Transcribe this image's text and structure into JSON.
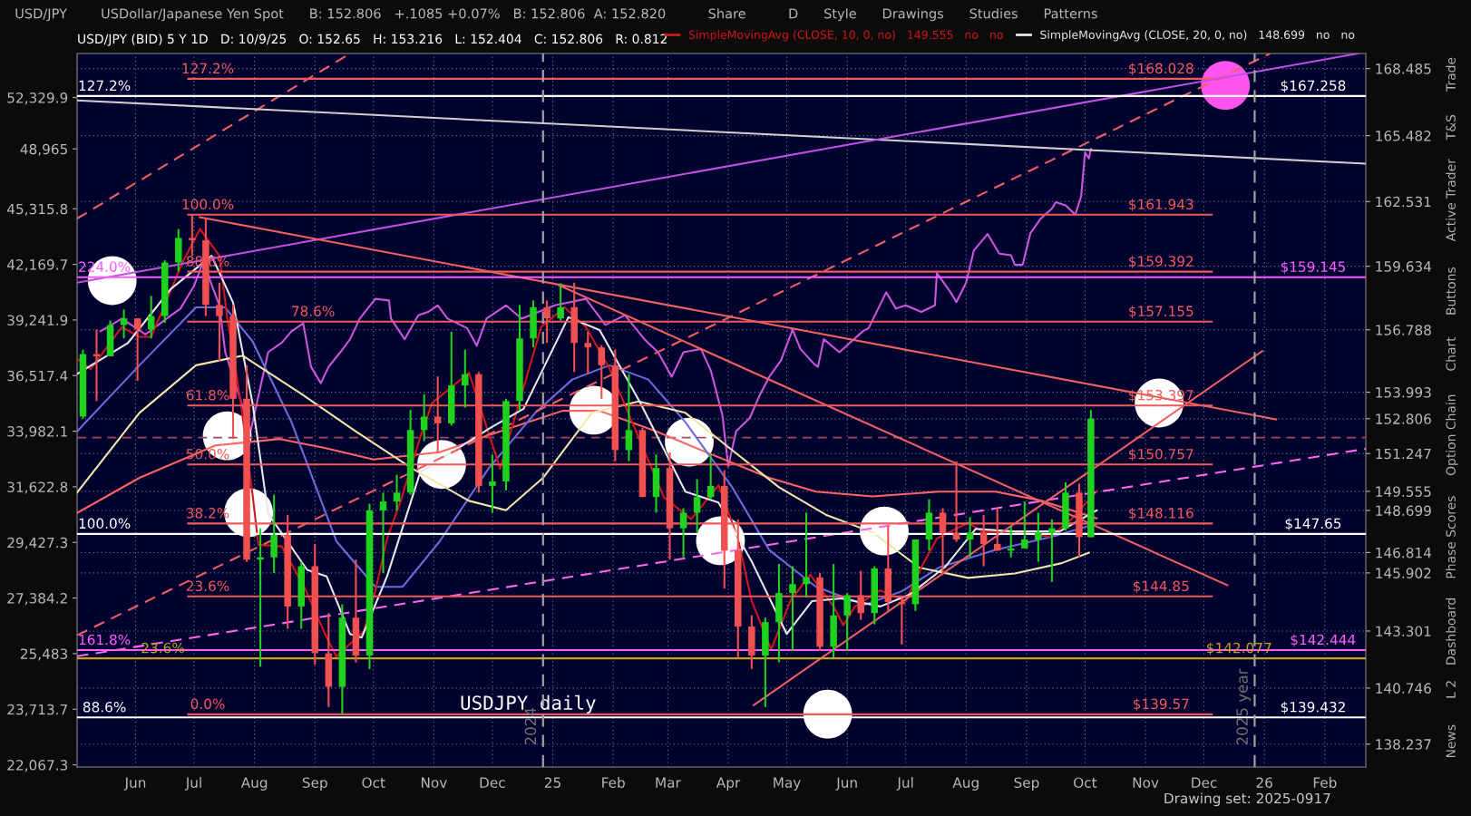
{
  "chart_data": {
    "type": "candlestick",
    "title": "USD/JPY (BID) 5 Y 1D   D: 10/9/25   O: 152.65   H: 153.216   L: 152.404   C: 152.806   R: 0.812",
    "subtitle": "USD/JPY        USDollar/Japanese Yen Spot      B: 152.806   +.1085 +0.07%   B: 152.806  A: 152.820          Share          D      Style      Drawings      Studies      Patterns",
    "xlim": [
      "2024-05-07",
      "2026-02-27"
    ],
    "xticks": [
      {
        "value": "2024-06-06",
        "label": "Jun"
      },
      {
        "value": "2024-07-06",
        "label": "Jul"
      },
      {
        "value": "2024-08-06",
        "label": "Aug"
      },
      {
        "value": "2024-09-06",
        "label": "Sep"
      },
      {
        "value": "2024-10-06",
        "label": "Oct"
      },
      {
        "value": "2024-11-06",
        "label": "Nov"
      },
      {
        "value": "2024-12-06",
        "label": "Dec"
      },
      {
        "value": "2025-01-06",
        "label": "25"
      },
      {
        "value": "2025-02-06",
        "label": "Feb"
      },
      {
        "value": "2025-03-06",
        "label": "Mar"
      },
      {
        "value": "2025-04-06",
        "label": "Apr"
      },
      {
        "value": "2025-05-06",
        "label": "May"
      },
      {
        "value": "2025-06-06",
        "label": "Jun"
      },
      {
        "value": "2025-07-06",
        "label": "Jul"
      },
      {
        "value": "2025-08-06",
        "label": "Aug"
      },
      {
        "value": "2025-09-06",
        "label": "Sep"
      },
      {
        "value": "2025-10-06",
        "label": "Oct"
      },
      {
        "value": "2025-11-06",
        "label": "Nov"
      },
      {
        "value": "2025-12-06",
        "label": "Dec"
      },
      {
        "value": "2026-01-06",
        "label": "26"
      },
      {
        "value": "2026-02-06",
        "label": "Feb"
      }
    ],
    "ylim": [
      137.21,
      169.16
    ],
    "yticks": [
      138.237,
      140.746,
      143.301,
      145.902,
      146.814,
      148.699,
      149.555,
      151.247,
      152.806,
      153.993,
      156.788,
      159.634,
      162.531,
      165.482,
      168.485
    ],
    "y2lim": [
      22005,
      55400
    ],
    "y2ticks": [
      {
        "value": 22067.3,
        "label": "22,067.3"
      },
      {
        "value": 23713.7,
        "label": "23,713.7"
      },
      {
        "value": 25483,
        "label": "25,483"
      },
      {
        "value": 27384.2,
        "label": "27,384.2"
      },
      {
        "value": 29427.3,
        "label": "29,427.3"
      },
      {
        "value": 31622.8,
        "label": "31,622.8"
      },
      {
        "value": 33982.1,
        "label": "33,982.1"
      },
      {
        "value": 36517.4,
        "label": "36,517.4"
      },
      {
        "value": 39241.9,
        "label": "39,241.9"
      },
      {
        "value": 42169.7,
        "label": "42,169.7"
      },
      {
        "value": 45315.8,
        "label": "45,315.8"
      },
      {
        "value": 48965,
        "label": "48,965"
      },
      {
        "value": 52329.9,
        "label": "52,329.9"
      }
    ],
    "log": "y2",
    "grid": true,
    "legend": "top",
    "marker": "none",
    "series": [
      {
        "x": [
          "2024-05-10",
          "2024-05-17",
          "2024-05-24",
          "2024-05-31",
          "2024-06-07",
          "2024-06-14",
          "2024-06-21",
          "2024-06-28",
          "2024-07-05",
          "2024-07-12",
          "2024-07-19",
          "2024-07-26",
          "2024-08-02",
          "2024-08-09",
          "2024-08-16",
          "2024-08-23",
          "2024-08-30",
          "2024-09-06",
          "2024-09-13",
          "2024-09-20",
          "2024-09-27",
          "2024-10-04",
          "2024-10-11",
          "2024-10-18",
          "2024-10-25",
          "2024-11-01",
          "2024-11-08",
          "2024-11-15",
          "2024-11-22",
          "2024-11-29",
          "2024-12-06",
          "2024-12-13",
          "2024-12-20",
          "2024-12-27",
          "2025-01-03",
          "2025-01-10",
          "2025-01-17",
          "2025-01-24",
          "2025-01-31",
          "2025-02-07",
          "2025-02-14",
          "2025-02-21",
          "2025-02-28",
          "2025-03-07",
          "2025-03-14",
          "2025-03-21",
          "2025-03-28",
          "2025-04-04",
          "2025-04-11",
          "2025-04-18",
          "2025-04-25",
          "2025-05-02",
          "2025-05-09",
          "2025-05-16",
          "2025-05-23",
          "2025-05-30",
          "2025-06-06",
          "2025-06-13",
          "2025-06-20",
          "2025-06-27",
          "2025-07-04",
          "2025-07-11",
          "2025-07-18",
          "2025-07-25",
          "2025-08-01",
          "2025-08-08",
          "2025-08-15",
          "2025-08-22",
          "2025-08-29",
          "2025-09-05",
          "2025-09-12",
          "2025-09-19",
          "2025-09-26",
          "2025-10-03",
          "2025-10-09"
        ],
        "ohlc": [
          [
            152.9,
            155.9,
            152.8,
            155.7
          ],
          [
            155.7,
            156.8,
            153.6,
            155.6
          ],
          [
            155.6,
            157.2,
            155.6,
            157.0
          ],
          [
            157.0,
            157.7,
            156.4,
            157.3
          ],
          [
            157.3,
            157.3,
            154.5,
            156.8
          ],
          [
            156.8,
            158.3,
            156.4,
            157.4
          ],
          [
            157.4,
            159.9,
            157.1,
            159.8
          ],
          [
            159.8,
            161.3,
            159.4,
            160.9
          ],
          [
            160.9,
            161.95,
            160.1,
            160.8
          ],
          [
            160.8,
            161.8,
            157.4,
            157.9
          ],
          [
            157.9,
            158.9,
            155.4,
            157.4
          ],
          [
            157.4,
            157.9,
            151.9,
            153.7
          ],
          [
            153.7,
            155.2,
            146.4,
            146.5
          ],
          [
            146.5,
            147.9,
            141.7,
            146.6
          ],
          [
            146.6,
            149.4,
            145.9,
            147.6
          ],
          [
            147.6,
            148.5,
            143.4,
            144.4
          ],
          [
            144.4,
            146.4,
            143.4,
            146.2
          ],
          [
            146.2,
            147.2,
            141.8,
            142.3
          ],
          [
            142.3,
            144.1,
            139.9,
            140.8
          ],
          [
            140.8,
            144.5,
            139.58,
            143.9
          ],
          [
            143.9,
            146.5,
            141.9,
            142.2
          ],
          [
            142.2,
            149.0,
            141.6,
            148.7
          ],
          [
            148.7,
            149.5,
            145.9,
            149.1
          ],
          [
            149.1,
            150.3,
            148.7,
            149.5
          ],
          [
            149.5,
            153.2,
            149.4,
            152.3
          ],
          [
            152.3,
            153.9,
            151.8,
            152.9
          ],
          [
            152.9,
            154.7,
            151.3,
            152.6
          ],
          [
            152.6,
            156.7,
            152.5,
            154.3
          ],
          [
            154.3,
            155.9,
            153.3,
            154.8
          ],
          [
            154.8,
            154.9,
            149.5,
            149.8
          ],
          [
            149.8,
            151.2,
            148.6,
            150.0
          ],
          [
            150.0,
            153.7,
            149.6,
            153.6
          ],
          [
            153.6,
            157.9,
            153.2,
            156.4
          ],
          [
            156.4,
            158.1,
            156.0,
            157.8
          ],
          [
            157.8,
            158.1,
            156.2,
            157.3
          ],
          [
            157.3,
            158.87,
            157.2,
            157.8
          ],
          [
            157.8,
            158.9,
            154.9,
            156.2
          ],
          [
            156.2,
            156.7,
            154.8,
            156.0
          ],
          [
            156.0,
            156.1,
            153.7,
            155.2
          ],
          [
            155.2,
            155.9,
            150.9,
            151.4
          ],
          [
            151.4,
            154.8,
            150.9,
            152.3
          ],
          [
            152.3,
            152.4,
            149.3,
            149.3
          ],
          [
            149.3,
            151.2,
            148.6,
            150.6
          ],
          [
            150.6,
            151.3,
            146.5,
            147.9
          ],
          [
            147.9,
            148.8,
            146.6,
            148.6
          ],
          [
            148.6,
            150.1,
            147.7,
            149.3
          ],
          [
            149.3,
            151.2,
            149.2,
            149.8
          ],
          [
            149.8,
            150.5,
            145.2,
            146.9
          ],
          [
            146.9,
            148.3,
            142.1,
            143.5
          ],
          [
            143.5,
            144.0,
            141.6,
            142.2
          ],
          [
            142.2,
            143.9,
            139.9,
            143.7
          ],
          [
            143.7,
            146.3,
            141.9,
            145.0
          ],
          [
            145.0,
            146.2,
            142.4,
            145.4
          ],
          [
            145.4,
            148.6,
            144.8,
            145.7
          ],
          [
            145.7,
            145.9,
            142.4,
            142.6
          ],
          [
            142.6,
            146.3,
            142.1,
            144.0
          ],
          [
            144.0,
            145.0,
            142.4,
            144.9
          ],
          [
            144.9,
            146.0,
            143.8,
            144.1
          ],
          [
            144.1,
            146.2,
            143.6,
            146.1
          ],
          [
            146.1,
            148.0,
            144.2,
            144.6
          ],
          [
            144.6,
            144.8,
            142.7,
            144.5
          ],
          [
            144.5,
            147.4,
            144.2,
            147.4
          ],
          [
            147.4,
            149.2,
            146.9,
            148.6
          ],
          [
            148.6,
            148.8,
            145.8,
            147.7
          ],
          [
            147.7,
            150.9,
            147.3,
            147.4
          ],
          [
            147.4,
            148.4,
            146.6,
            147.7
          ],
          [
            147.7,
            148.5,
            146.2,
            147.2
          ],
          [
            147.2,
            148.8,
            146.9,
            146.9
          ],
          [
            146.9,
            148.0,
            146.6,
            147.0
          ],
          [
            147.0,
            149.1,
            147.0,
            147.4
          ],
          [
            147.4,
            148.6,
            146.4,
            147.7
          ],
          [
            147.7,
            148.3,
            145.5,
            147.9
          ],
          [
            147.9,
            149.96,
            147.8,
            149.5
          ],
          [
            149.5,
            149.9,
            146.6,
            147.5
          ],
          [
            147.5,
            153.2,
            147.5,
            152.806
          ]
        ],
        "colors": [
          "#1ed21e",
          "#f05050",
          "#1ed21e",
          "#1ed21e",
          "#f05050",
          "#1ed21e",
          "#1ed21e",
          "#1ed21e",
          "#f05050",
          "#f05050",
          "#f05050",
          "#f05050",
          "#f05050",
          "#1ed21e",
          "#1ed21e",
          "#f05050",
          "#1ed21e",
          "#f05050",
          "#f05050",
          "#1ed21e",
          "#f05050",
          "#1ed21e",
          "#1ed21e",
          "#1ed21e",
          "#1ed21e",
          "#1ed21e",
          "#f05050",
          "#1ed21e",
          "#1ed21e",
          "#f05050",
          "#1ed21e",
          "#1ed21e",
          "#1ed21e",
          "#1ed21e",
          "#f05050",
          "#1ed21e",
          "#f05050",
          "#f05050",
          "#f05050",
          "#f05050",
          "#1ed21e",
          "#f05050",
          "#1ed21e",
          "#f05050",
          "#1ed21e",
          "#1ed21e",
          "#1ed21e",
          "#f05050",
          "#f05050",
          "#f05050",
          "#1ed21e",
          "#1ed21e",
          "#1ed21e",
          "#1ed21e",
          "#f05050",
          "#1ed21e",
          "#1ed21e",
          "#f05050",
          "#1ed21e",
          "#f05050",
          "#f05050",
          "#1ed21e",
          "#1ed21e",
          "#f05050",
          "#f05050",
          "#1ed21e",
          "#f05050",
          "#f05050",
          "#1ed21e",
          "#1ed21e",
          "#1ed21e",
          "#1ed21e",
          "#1ed21e",
          "#f05050",
          "#1ed21e"
        ]
      },
      {
        "type": "line",
        "color": "#ff6464",
        "x": [
          "2024-05-07",
          "2024-06-08",
          "2024-07-17",
          "2024-08-19",
          "2024-09-12",
          "2024-10-06",
          "2024-11-09",
          "2024-12-10",
          "2025-01-11",
          "2025-01-30",
          "2025-02-28",
          "2025-03-29",
          "2025-04-27",
          "2025-05-21",
          "2025-06-19",
          "2025-07-23",
          "2025-08-21",
          "2025-09-14",
          "2025-10-12"
        ],
        "values": [
          148.59,
          150.16,
          151.61,
          151.9,
          151.48,
          150.98,
          151.31,
          152.24,
          153.16,
          153.16,
          152.24,
          151.19,
          150.16,
          149.54,
          149.33,
          149.54,
          149.54,
          149.13,
          148.35
        ]
      },
      {
        "type": "line",
        "color": "#6b6bdc",
        "x": [
          "2024-05-07",
          "2024-06-08",
          "2024-07-07",
          "2024-07-22",
          "2024-08-05",
          "2024-08-25",
          "2024-09-17",
          "2024-10-07",
          "2024-10-21",
          "2024-11-09",
          "2024-12-04",
          "2024-12-28",
          "2025-01-16",
          "2025-02-04",
          "2025-02-24",
          "2025-03-15",
          "2025-04-08",
          "2025-04-27",
          "2025-05-21",
          "2025-06-15",
          "2025-07-04",
          "2025-07-23",
          "2025-08-21",
          "2025-09-19",
          "2025-10-12"
        ],
        "values": [
          152.24,
          155.2,
          157.79,
          157.79,
          156.27,
          152.65,
          147.32,
          145.28,
          145.28,
          147.32,
          150.57,
          153.07,
          154.56,
          155.2,
          154.56,
          152.65,
          149.74,
          146.93,
          145.28,
          144.48,
          145.08,
          146.14,
          146.93,
          147.52,
          148.11
        ]
      },
      {
        "type": "line",
        "color": "#f2e6a6",
        "x": [
          "2024-05-07",
          "2024-06-08",
          "2024-07-07",
          "2024-07-31",
          "2024-08-30",
          "2024-09-27",
          "2024-10-26",
          "2024-11-24",
          "2024-12-13",
          "2025-01-01",
          "2025-01-26",
          "2025-02-19",
          "2025-03-15",
          "2025-04-08",
          "2025-05-02",
          "2025-05-26",
          "2025-06-19",
          "2025-07-13",
          "2025-08-07",
          "2025-08-31",
          "2025-09-24",
          "2025-10-08"
        ],
        "values": [
          149.5,
          153.07,
          155.2,
          155.63,
          153.92,
          152.24,
          150.57,
          149.13,
          148.71,
          150.16,
          153.07,
          153.58,
          153.07,
          151.4,
          149.74,
          148.51,
          147.72,
          146.14,
          145.68,
          145.88,
          146.34,
          146.81
        ]
      },
      {
        "type": "line",
        "name": "SimpleMovingAvg (CLOSE, 10, 0, no)   149.555   no   no",
        "color": "#d01818",
        "x": [
          "2024-05-07",
          "2024-05-14",
          "2024-05-30",
          "2024-06-08",
          "2024-06-14",
          "2024-06-30",
          "2024-07-09",
          "2024-07-19",
          "2024-07-23",
          "2024-07-30",
          "2024-08-05",
          "2024-08-08",
          "2024-08-20",
          "2024-09-01",
          "2024-09-12",
          "2024-09-17",
          "2024-10-01",
          "2024-10-07",
          "2024-10-13",
          "2024-10-20",
          "2024-10-30",
          "2024-11-05",
          "2024-11-24",
          "2024-12-10",
          "2024-12-31",
          "2025-01-12",
          "2025-01-23",
          "2025-02-04",
          "2025-03-04",
          "2025-03-18",
          "2025-04-01",
          "2025-04-11",
          "2025-04-18",
          "2025-04-28",
          "2025-05-08",
          "2025-05-18",
          "2025-05-30",
          "2025-06-04",
          "2025-06-10",
          "2025-06-23",
          "2025-07-06",
          "2025-07-14",
          "2025-07-22",
          "2025-08-07",
          "2025-08-14",
          "2025-08-30",
          "2025-09-18",
          "2025-09-29",
          "2025-10-12"
        ],
        "values": [
          155.5,
          155.03,
          156.91,
          156.47,
          156.47,
          159.79,
          161.3,
          160.1,
          157.35,
          153.5,
          149.41,
          147.16,
          147.09,
          145.19,
          143.01,
          142.16,
          143.29,
          145.08,
          147.44,
          149.13,
          151.97,
          153.5,
          154.87,
          150.57,
          156.91,
          157.79,
          156.91,
          155.07,
          149.29,
          148.31,
          149.83,
          147.44,
          144.64,
          142.47,
          144.68,
          145.82,
          144.4,
          143.56,
          144.4,
          145.12,
          144.64,
          146.15,
          147.44,
          148.15,
          147.76,
          147.76,
          147.52,
          148.31,
          149.56
        ]
      },
      {
        "type": "line",
        "name": "SimpleMovingAvg (CLOSE, 20, 0, no)   148.699   no   no",
        "color": "#e8e8e8",
        "x": [
          "2024-05-07",
          "2024-06-02",
          "2024-06-24",
          "2024-07-15",
          "2024-07-26",
          "2024-08-05",
          "2024-08-13",
          "2024-09-02",
          "2024-09-12",
          "2024-09-24",
          "2024-09-30",
          "2024-10-13",
          "2024-10-30",
          "2024-12-05",
          "2024-12-22",
          "2025-01-14",
          "2025-01-30",
          "2025-02-20",
          "2025-03-15",
          "2025-04-01",
          "2025-04-18",
          "2025-05-06",
          "2025-05-19",
          "2025-06-03",
          "2025-06-23",
          "2025-07-08",
          "2025-07-26",
          "2025-08-11",
          "2025-08-30",
          "2025-09-23",
          "2025-10-12"
        ],
        "values": [
          154.81,
          156.19,
          158.61,
          160.1,
          158.01,
          153.5,
          148.55,
          146.04,
          145.75,
          143.17,
          143.01,
          145.75,
          150.41,
          152.4,
          153.25,
          157.35,
          156.78,
          153.5,
          149.54,
          149.05,
          146.42,
          143.17,
          144.64,
          144.76,
          144.4,
          144.93,
          146.15,
          147.88,
          147.76,
          147.76,
          148.7
        ]
      },
      {
        "type": "line",
        "axis": "y2",
        "color": "#cc55dd",
        "x": [
          "2024-05-19",
          "2024-05-30",
          "2024-06-11",
          "2024-06-22",
          "2024-06-29",
          "2024-07-06",
          "2024-07-11",
          "2024-07-14",
          "2024-07-19",
          "2024-07-22",
          "2024-08-04",
          "2024-08-13",
          "2024-08-20",
          "2024-08-25",
          "2024-08-31",
          "2024-09-04",
          "2024-09-09",
          "2024-09-13",
          "2024-09-19",
          "2024-09-24",
          "2024-09-29",
          "2024-10-03",
          "2024-10-07",
          "2024-10-14",
          "2024-10-15",
          "2024-10-22",
          "2024-10-29",
          "2024-11-03",
          "2024-11-08",
          "2024-11-13",
          "2024-11-23",
          "2024-11-28",
          "2024-12-03",
          "2024-12-13",
          "2024-12-21",
          "2025-01-07",
          "2025-01-23",
          "2025-02-02",
          "2025-02-12",
          "2025-02-22",
          "2025-03-01",
          "2025-03-08",
          "2025-03-14",
          "2025-03-23",
          "2025-03-28",
          "2025-04-03",
          "2025-04-06",
          "2025-04-10",
          "2025-04-17",
          "2025-04-22",
          "2025-04-27",
          "2025-05-03",
          "2025-05-09",
          "2025-05-13",
          "2025-05-20",
          "2025-05-22",
          "2025-05-25",
          "2025-06-02",
          "2025-06-14",
          "2025-06-17",
          "2025-06-26",
          "2025-07-01",
          "2025-07-06",
          "2025-07-14",
          "2025-07-21",
          "2025-07-22",
          "2025-07-29",
          "2025-08-01",
          "2025-08-06",
          "2025-08-10",
          "2025-08-17",
          "2025-08-23",
          "2025-08-29",
          "2025-08-31",
          "2025-09-04",
          "2025-09-08",
          "2025-09-13",
          "2025-09-19",
          "2025-09-21",
          "2025-09-26",
          "2025-10-01",
          "2025-10-04",
          "2025-10-06",
          "2025-10-08",
          "2025-10-09"
        ],
        "values": [
          38672,
          39311,
          38511,
          39311,
          39824,
          41014,
          42398,
          41360,
          39992,
          37637,
          33978,
          37637,
          38111,
          38672,
          39072,
          36932,
          36162,
          36932,
          37637,
          38277,
          39311,
          39824,
          40330,
          40246,
          39311,
          38277,
          39484,
          39652,
          39992,
          39311,
          38833,
          37954,
          39311,
          39992,
          39311,
          39992,
          40330,
          38990,
          39484,
          38277,
          37637,
          36457,
          37637,
          37798,
          36771,
          34687,
          32466,
          33978,
          34568,
          35573,
          36457,
          37234,
          38754,
          37798,
          37072,
          36932,
          38277,
          37637,
          38672,
          38833,
          40674,
          39824,
          39992,
          39652,
          39992,
          41701,
          40674,
          40162,
          41181,
          42945,
          43862,
          42764,
          42674,
          42145,
          42145,
          43910,
          44706,
          45327,
          45703,
          45515,
          44971,
          46061,
          48748,
          48366,
          48965
        ]
      },
      {
        "type": "line",
        "color": "#f06060",
        "line_style": "dashed",
        "x": [
          "2024-05-07",
          "2024-09-24"
        ],
        "values": [
          161.77,
          169.16
        ]
      },
      {
        "type": "line",
        "color": "#f06060",
        "line_style": "dashed",
        "x": [
          "2024-05-07",
          "2026-01-09"
        ],
        "values": [
          143.11,
          169.16
        ]
      },
      {
        "type": "line",
        "color": "#ff66ee",
        "line_style": "dashed",
        "x": [
          "2024-05-07",
          "2026-02-27"
        ],
        "values": [
          142.17,
          151.46
        ]
      },
      {
        "type": "line",
        "color": "#d0d0d0",
        "x": [
          "2024-05-07",
          "2026-02-27"
        ],
        "values": [
          167.06,
          164.23
        ]
      },
      {
        "type": "line",
        "color": "#c050e0",
        "x": [
          "2024-05-07",
          "2026-02-23"
        ],
        "values": [
          158.9,
          169.16
        ]
      },
      {
        "type": "line",
        "color": "#f06060",
        "x": [
          "2024-07-09",
          "2026-01-12"
        ],
        "values": [
          161.83,
          152.78
        ]
      },
      {
        "type": "line",
        "color": "#f06060",
        "x": [
          "2025-04-19",
          "2026-01-05"
        ],
        "values": [
          139.98,
          155.84
        ]
      },
      {
        "type": "line",
        "color": "#f06060",
        "x": [
          "2025-01-09",
          "2025-12-18"
        ],
        "values": [
          158.79,
          145.35
        ]
      },
      {
        "type": "line",
        "color": "#f05a5a",
        "x": [
          "2024-07-03",
          "2025-12-10"
        ],
        "values": [
          168.028,
          168.028
        ]
      },
      {
        "type": "line",
        "color": "#f05a5a",
        "x": [
          "2024-07-03",
          "2025-12-10"
        ],
        "values": [
          161.943,
          161.943
        ]
      },
      {
        "type": "line",
        "color": "#f05a5a",
        "x": [
          "2024-07-03",
          "2025-12-10"
        ],
        "values": [
          159.392,
          159.392
        ]
      },
      {
        "type": "line",
        "color": "#f05a5a",
        "x": [
          "2024-07-03",
          "2025-12-10"
        ],
        "values": [
          157.155,
          157.155
        ]
      },
      {
        "type": "line",
        "color": "#f05a5a",
        "x": [
          "2024-07-03",
          "2025-12-10"
        ],
        "values": [
          153.397,
          153.397
        ]
      },
      {
        "type": "line",
        "color": "#f05a5a",
        "x": [
          "2024-07-03",
          "2025-12-10"
        ],
        "values": [
          150.757,
          150.757
        ]
      },
      {
        "type": "line",
        "color": "#f05a5a",
        "x": [
          "2024-07-03",
          "2025-12-10"
        ],
        "values": [
          148.116,
          148.116
        ]
      },
      {
        "type": "line",
        "color": "#f05a5a",
        "x": [
          "2024-07-03",
          "2025-12-10"
        ],
        "values": [
          144.85,
          144.85
        ]
      },
      {
        "type": "line",
        "color": "#f05a5a",
        "x": [
          "2024-07-03",
          "2025-12-10"
        ],
        "values": [
          139.57,
          139.57
        ]
      },
      {
        "type": "line",
        "color": "#ffffff",
        "x": [
          "2024-05-07",
          "2026-02-27"
        ],
        "values": [
          167.258,
          167.258
        ]
      },
      {
        "type": "line",
        "color": "#ffffff",
        "x": [
          "2024-05-07",
          "2026-02-27"
        ],
        "values": [
          147.65,
          147.65
        ]
      },
      {
        "type": "line",
        "color": "#ffffff",
        "x": [
          "2024-05-07",
          "2026-02-27"
        ],
        "values": [
          139.432,
          139.432
        ]
      },
      {
        "type": "line",
        "color": "#ff5cff",
        "x": [
          "2024-05-07",
          "2026-02-27"
        ],
        "values": [
          159.145,
          159.145
        ]
      },
      {
        "type": "line",
        "color": "#ff5cff",
        "x": [
          "2024-05-07",
          "2026-02-27"
        ],
        "values": [
          142.444,
          142.444
        ]
      },
      {
        "type": "line",
        "color": "#c8a020",
        "x": [
          "2024-05-07",
          "2026-02-27"
        ],
        "values": [
          142.077,
          142.077
        ]
      },
      {
        "type": "scatter",
        "marker": "circle",
        "color": "#ffffff",
        "x": [
          "2024-05-25",
          "2024-07-23",
          "2024-08-03",
          "2024-11-10",
          "2025-01-27",
          "2025-03-17",
          "2025-04-02",
          "2025-06-25",
          "2025-05-27",
          "2025-11-13"
        ],
        "values": [
          158.99,
          152.04,
          148.6,
          150.76,
          153.19,
          151.76,
          147.34,
          147.78,
          139.58,
          153.51
        ]
      },
      {
        "type": "scatter",
        "marker": "circle",
        "color": "#ff55ee",
        "x": [
          "2025-12-17"
        ],
        "values": [
          167.73
        ]
      }
    ],
    "ref_lines": [
      {
        "axis": "y",
        "value": 151.96,
        "color": "#a04a5a",
        "line_style": "dashed"
      },
      {
        "axis": "x",
        "value": "2025-01-01",
        "label": "2024",
        "color": "#a0a0a0",
        "line_style": "dashed"
      },
      {
        "axis": "x",
        "value": "2026-01-01",
        "label": "2025 year",
        "color": "#a0a0a0",
        "line_style": "dashed"
      }
    ],
    "annotations": [
      "USDJPY daily",
      "Drawing set: 2025-0917",
      "Trade",
      "T&S",
      "Active Trader",
      "Buttons",
      "Chart",
      "Option Chain",
      "Phase Scores",
      "Dashboard",
      "L 2",
      "News",
      {
        "text": "127.2%",
        "x": "2024-07-13",
        "y": 168.028
      },
      {
        "text": "100.0%",
        "x": "2024-07-13",
        "y": 161.943
      },
      {
        "text": "88.6%",
        "x": "2024-07-13",
        "y": 159.392
      },
      {
        "text": "78.6%",
        "x": "2024-09-05",
        "y": 157.155
      },
      {
        "text": "61.8%",
        "x": "2024-07-13",
        "y": 153.397
      },
      {
        "text": "50.0%",
        "x": "2024-07-13",
        "y": 150.757
      },
      {
        "text": "38.2%",
        "x": "2024-07-13",
        "y": 148.116
      },
      {
        "text": "23.6%",
        "x": "2024-07-13",
        "y": 144.85
      },
      {
        "text": "0.0%",
        "x": "2024-07-13",
        "y": 139.57
      },
      {
        "text": "127.2%",
        "x": "2024-05-21",
        "y": 167.258
      },
      {
        "text": "100.0%",
        "x": "2024-05-21",
        "y": 147.65
      },
      {
        "text": "88.6%",
        "x": "2024-05-21",
        "y": 139.432
      },
      {
        "text": "224.0%",
        "x": "2024-05-21",
        "y": 159.145
      },
      {
        "text": "161.8%",
        "x": "2024-05-21",
        "y": 142.444
      },
      {
        "text": "23.6%",
        "x": "2024-06-20",
        "y": 142.077
      },
      {
        "text": "$168.028",
        "x": "2025-11-14",
        "y": 168.028
      },
      {
        "text": "$161.943",
        "x": "2025-11-14",
        "y": 161.943
      },
      {
        "text": "$159.392",
        "x": "2025-11-14",
        "y": 159.392
      },
      {
        "text": "$157.155",
        "x": "2025-11-14",
        "y": 157.155
      },
      {
        "text": "$153.397",
        "x": "2025-11-14",
        "y": 153.397
      },
      {
        "text": "$150.757",
        "x": "2025-11-14",
        "y": 150.757
      },
      {
        "text": "$148.116",
        "x": "2025-11-14",
        "y": 148.116
      },
      {
        "text": "$144.85",
        "x": "2025-11-14",
        "y": 144.85
      },
      {
        "text": "$139.57",
        "x": "2025-11-14",
        "y": 139.57
      },
      {
        "text": "$167.258",
        "x": "2026-01-31",
        "y": 167.258
      },
      {
        "text": "$159.145",
        "x": "2026-01-31",
        "y": 159.145
      },
      {
        "text": "$147.65",
        "x": "2026-01-31",
        "y": 147.65
      },
      {
        "text": "$139.432",
        "x": "2026-01-31",
        "y": 139.432
      },
      {
        "text": "$142.444",
        "x": "2026-02-05",
        "y": 142.444
      },
      {
        "text": "$142.077",
        "x": "2025-12-24",
        "y": 142.077
      }
    ]
  }
}
